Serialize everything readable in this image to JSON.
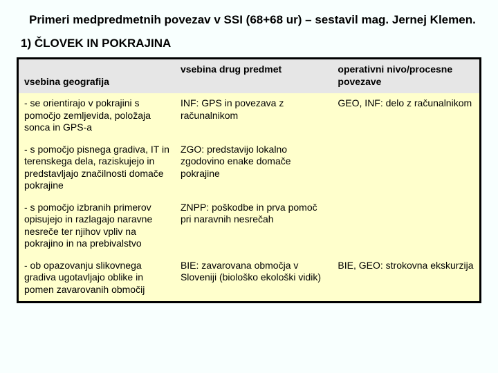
{
  "title": "Primeri medpredmetnih povezav v SSI (68+68 ur) – sestavil mag. Jernej Klemen.",
  "subtitle": "1) ČLOVEK IN POKRAJINA",
  "table": {
    "type": "table",
    "background_color": "#ffffcc",
    "header_background": "#e6e6e6",
    "border_color": "#000000",
    "font_size": 14,
    "columns": [
      {
        "key": "geo",
        "label": "vsebina geografija",
        "width_pct": 34
      },
      {
        "key": "drug",
        "label": "vsebina drug predmet",
        "width_pct": 34
      },
      {
        "key": "nivo",
        "label": "operativni nivo/procesne povezave",
        "width_pct": 32
      }
    ],
    "rows": [
      {
        "geo": "- se orientirajo v pokrajini s pomočjo zemljevida, položaja sonca in GPS-a",
        "drug": "INF: GPS in povezava z računalnikom",
        "nivo": "GEO, INF: delo z računalnikom"
      },
      {
        "geo": "- s pomočjo pisnega gradiva, IT in terenskega dela, raziskujejo in predstavljajo značilnosti domače pokrajine",
        "drug": "ZGO: predstavijo lokalno zgodovino enake domače pokrajine",
        "nivo": ""
      },
      {
        "geo": "- s pomočjo izbranih primerov opisujejo in razlagajo naravne nesreče ter njihov vpliv na pokrajino in na prebivalstvo",
        "drug": "ZNPP: poškodbe in prva pomoč pri naravnih nesrečah",
        "nivo": ""
      },
      {
        "geo": "- ob opazovanju slikovnega gradiva ugotavljajo oblike in pomen zavarovanih območij",
        "drug": "BIE: zavarovana območja v Sloveniji (biološko ekološki vidik)",
        "nivo": "BIE, GEO: strokovna ekskurzija"
      }
    ]
  }
}
